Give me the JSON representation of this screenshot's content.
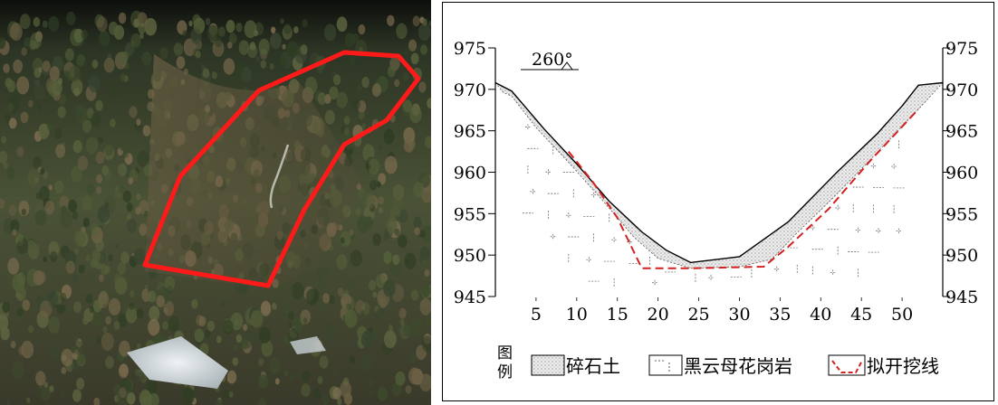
{
  "colors": {
    "photo_outline": "#ff1a1a",
    "terrain_line": "#000000",
    "excavation_line": "#d42020",
    "soil_fill": "#e6e6e6"
  },
  "chart_data": {
    "type": "line",
    "x_ticks": [
      5,
      10,
      15,
      20,
      25,
      30,
      35,
      40,
      45,
      50
    ],
    "y_ticks": [
      945,
      950,
      955,
      960,
      965,
      970,
      975
    ],
    "xlim": [
      0,
      55
    ],
    "ylim": [
      945,
      975
    ],
    "grid": false,
    "orientation_label": "260°",
    "series": [
      {
        "role": "ground_surface",
        "points": [
          [
            0,
            970.8
          ],
          [
            2,
            969.8
          ],
          [
            6,
            965.2
          ],
          [
            10,
            961.0
          ],
          [
            14,
            956.5
          ],
          [
            18,
            952.8
          ],
          [
            21,
            950.6
          ],
          [
            24,
            949.1
          ],
          [
            30,
            949.8
          ],
          [
            36,
            954.0
          ],
          [
            42,
            960.0
          ],
          [
            47,
            964.7
          ],
          [
            50,
            968.0
          ],
          [
            52,
            970.5
          ],
          [
            55,
            970.8
          ]
        ]
      },
      {
        "role": "rock_top",
        "points": [
          [
            0,
            970.8
          ],
          [
            1,
            969.6
          ],
          [
            2,
            969.2
          ],
          [
            5,
            965.4
          ],
          [
            9,
            961.2
          ],
          [
            13,
            956.8
          ],
          [
            17,
            952.2
          ],
          [
            20,
            949.6
          ],
          [
            24,
            948.4
          ],
          [
            30,
            948.6
          ],
          [
            34,
            949.5
          ],
          [
            37,
            952.6
          ],
          [
            41,
            956.4
          ],
          [
            45,
            960.4
          ],
          [
            49,
            964.5
          ],
          [
            52,
            967.6
          ],
          [
            55,
            970.8
          ]
        ]
      },
      {
        "role": "planned_excavation",
        "points": [
          [
            9,
            962.5
          ],
          [
            12,
            958.8
          ],
          [
            15,
            954.5
          ],
          [
            18,
            948.4
          ],
          [
            24,
            948.4
          ],
          [
            33,
            948.6
          ],
          [
            36,
            951.0
          ],
          [
            41,
            955.6
          ],
          [
            46,
            961.3
          ],
          [
            52,
            967.6
          ]
        ]
      }
    ],
    "legend_title": "图例",
    "legend": [
      "碎石土",
      "黑云母花岗岩",
      "拟开挖线"
    ]
  }
}
